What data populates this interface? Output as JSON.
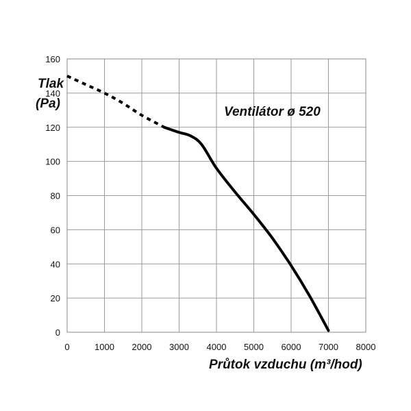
{
  "chart_data": {
    "type": "line",
    "title": "Ventilátor ø 520",
    "ylabel_line1": "Tlak",
    "ylabel_line2": "(Pa)",
    "xlabel": "Průtok vzduchu (m³/hod)",
    "xlim": [
      0,
      8000
    ],
    "ylim": [
      0,
      160
    ],
    "x_ticks": [
      "0",
      "1000",
      "2000",
      "3000",
      "4000",
      "5000",
      "6000",
      "7000",
      "8000"
    ],
    "y_ticks": [
      "0",
      "20",
      "40",
      "60",
      "80",
      "100",
      "120",
      "140",
      "160"
    ],
    "grid": true,
    "series": [
      {
        "style": "dashed",
        "color": "#000000",
        "points": [
          [
            0,
            150
          ],
          [
            500,
            145
          ],
          [
            1000,
            140
          ],
          [
            1500,
            134
          ],
          [
            2000,
            127
          ],
          [
            2600,
            120
          ]
        ]
      },
      {
        "style": "solid",
        "color": "#000000",
        "points": [
          [
            2600,
            120
          ],
          [
            3000,
            117
          ],
          [
            3300,
            115
          ],
          [
            3600,
            110
          ],
          [
            4000,
            96
          ],
          [
            4500,
            82
          ],
          [
            5000,
            69
          ],
          [
            5500,
            55
          ],
          [
            6000,
            39
          ],
          [
            6500,
            21
          ],
          [
            7000,
            1
          ]
        ]
      }
    ]
  }
}
